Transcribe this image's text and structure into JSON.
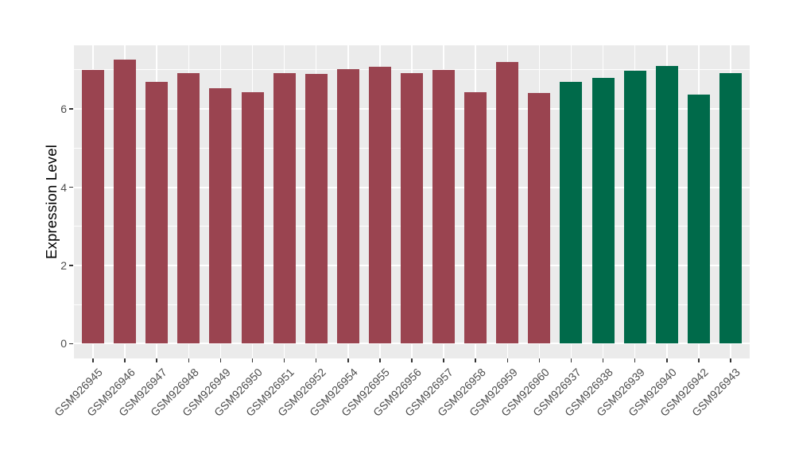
{
  "chart_data": {
    "type": "bar",
    "title": "",
    "xlabel": "",
    "ylabel": "Expression Level",
    "categories": [
      "GSM926945",
      "GSM926946",
      "GSM926947",
      "GSM926948",
      "GSM926949",
      "GSM926950",
      "GSM926951",
      "GSM926952",
      "GSM926954",
      "GSM926955",
      "GSM926956",
      "GSM926957",
      "GSM926958",
      "GSM926959",
      "GSM926960",
      "GSM926937",
      "GSM926938",
      "GSM926939",
      "GSM926940",
      "GSM926942",
      "GSM926943"
    ],
    "values": [
      7.0,
      7.27,
      6.7,
      6.92,
      6.53,
      6.44,
      6.91,
      6.9,
      7.03,
      7.09,
      6.92,
      6.99,
      6.44,
      7.21,
      6.42,
      6.7,
      6.8,
      6.97,
      7.11,
      6.36,
      6.92
    ],
    "groups": [
      "maroon",
      "maroon",
      "maroon",
      "maroon",
      "maroon",
      "maroon",
      "maroon",
      "maroon",
      "maroon",
      "maroon",
      "maroon",
      "maroon",
      "maroon",
      "maroon",
      "maroon",
      "green",
      "green",
      "green",
      "green",
      "green",
      "green"
    ],
    "group_colors": {
      "maroon": "#9A4450",
      "green": "#006A4A"
    },
    "yticks": [
      0,
      2,
      4,
      6
    ],
    "ytick_labels": [
      "0",
      "2",
      "4",
      "6"
    ],
    "minor_ticks": [
      1,
      3,
      5,
      7
    ],
    "ylim": [
      0,
      7.27
    ],
    "panel_range": [
      -0.38,
      7.63
    ],
    "grid": "on",
    "legend": "none",
    "panel_background": "#EBEBEB",
    "gridline_color": "#FFFFFF",
    "tick_label_color": "#4D4D4D",
    "axis_title_color": "#000000"
  }
}
